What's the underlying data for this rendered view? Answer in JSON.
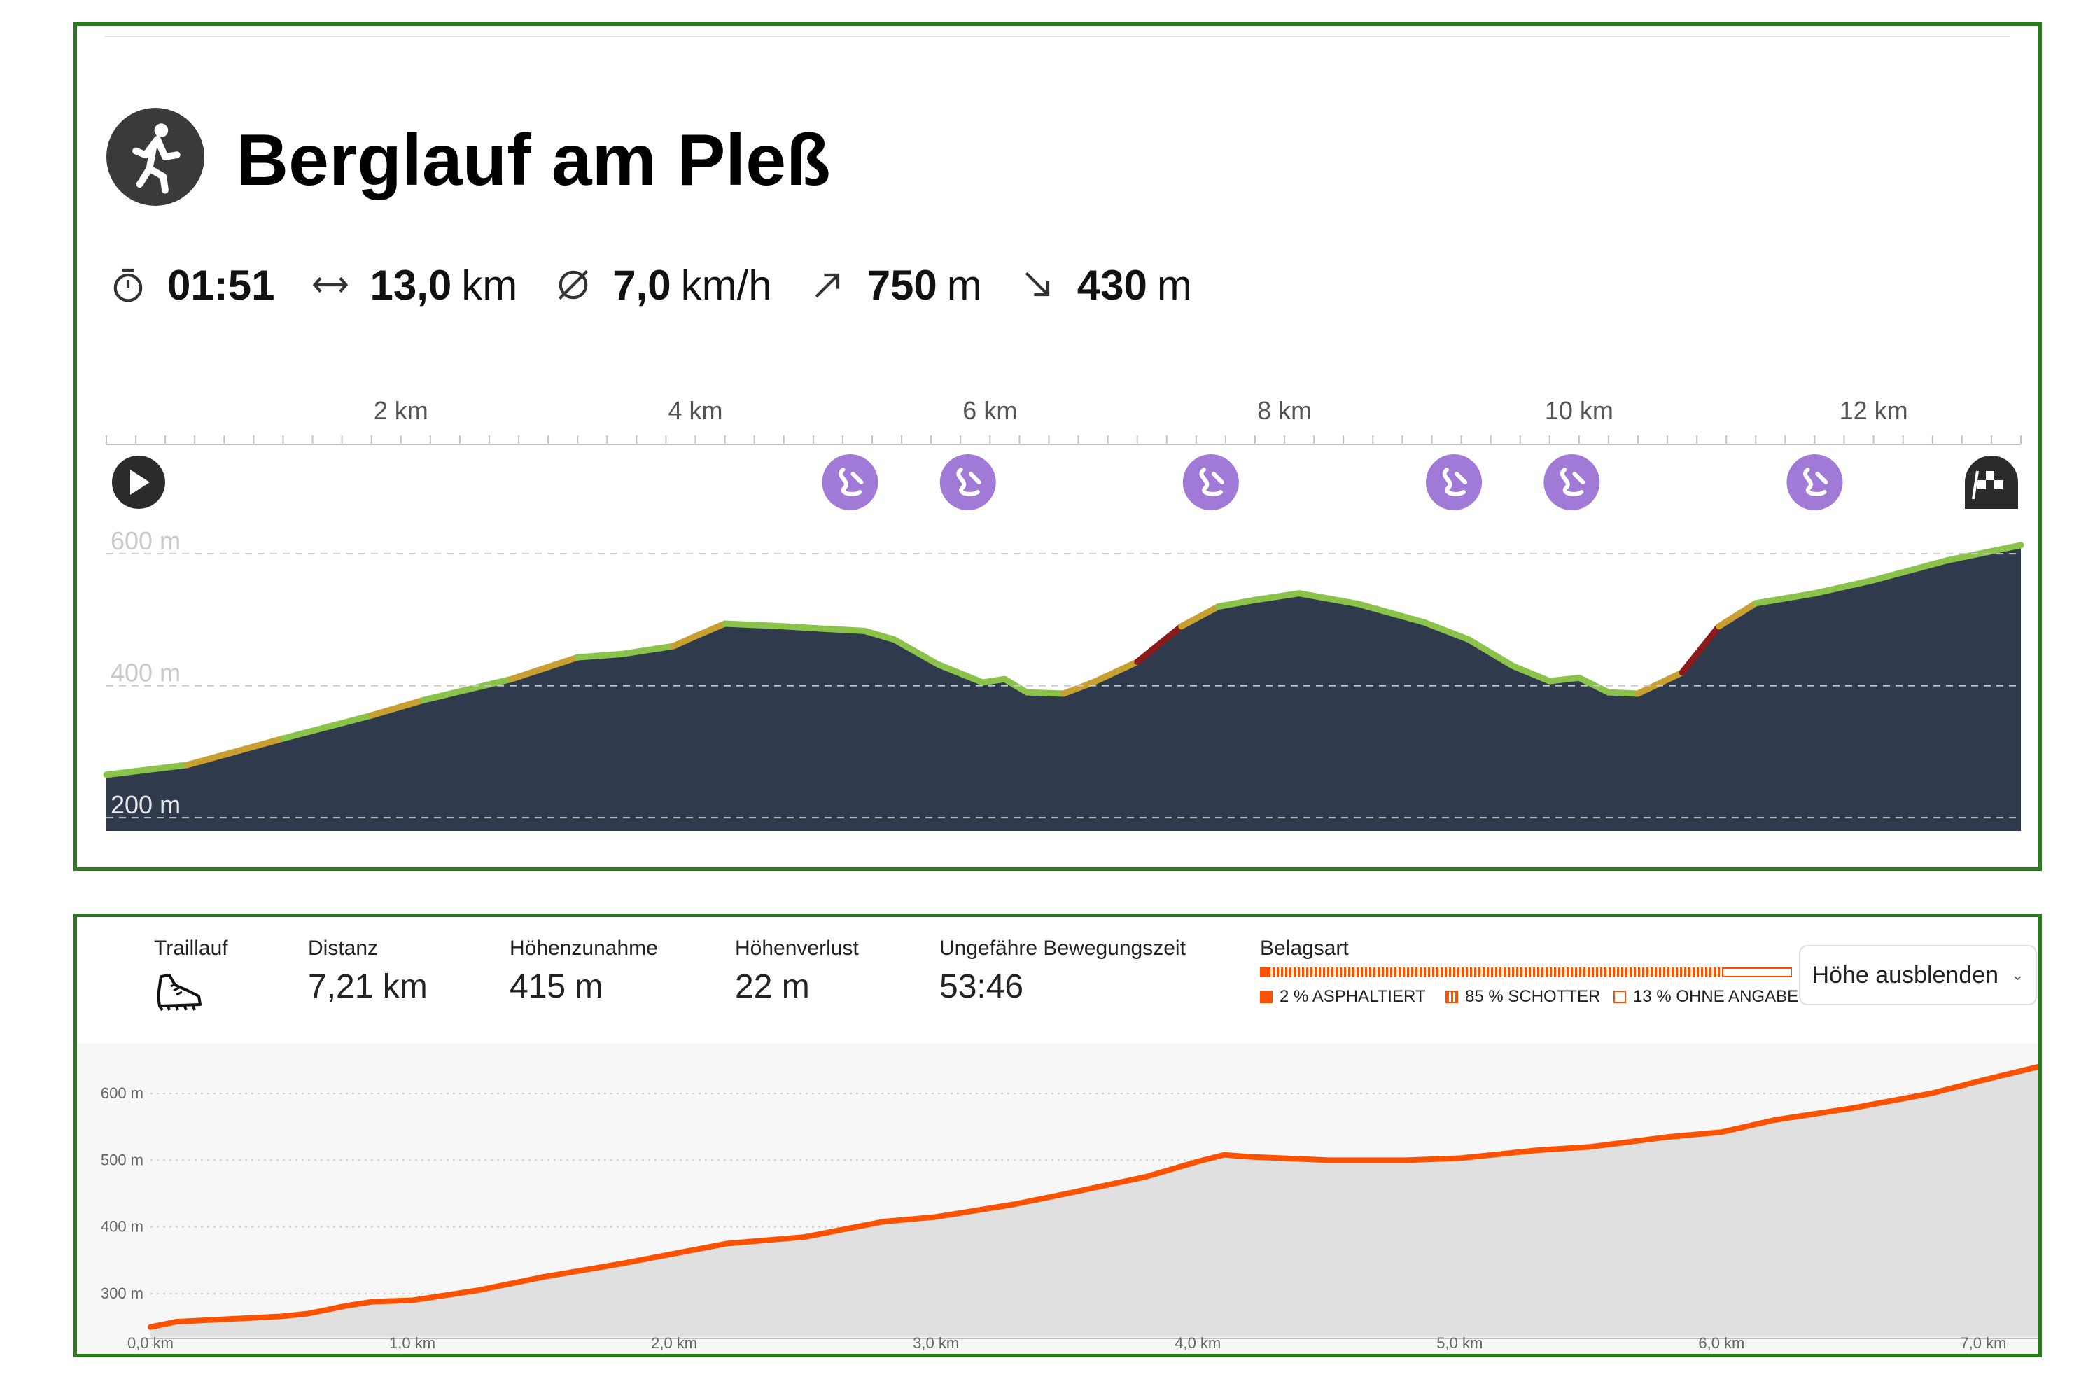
{
  "route": {
    "title": "Berglauf am Pleß",
    "sport_icon": "running-person-icon",
    "stats": [
      {
        "icon": "stopwatch-icon",
        "value": "01:51",
        "unit": ""
      },
      {
        "icon": "distance-arrows-icon",
        "value": "13,0",
        "unit": "km"
      },
      {
        "icon": "average-speed-icon",
        "value": "7,0",
        "unit": "km/h"
      },
      {
        "icon": "ascent-arrow-icon",
        "value": "750",
        "unit": "m"
      },
      {
        "icon": "descent-arrow-icon",
        "value": "430",
        "unit": "m"
      }
    ],
    "markers": {
      "start": "play-icon",
      "waypoint": "winding-road-icon",
      "finish": "checkered-flag-icon"
    },
    "colors": {
      "fill": "#2f3a4c",
      "gentle": "#8bc34a",
      "moderate": "#c8a032",
      "steep": "#8b1a1a"
    }
  },
  "profile": {
    "header": {
      "sport_label": "Traillauf",
      "sport_icon": "trail-shoe-icon",
      "distance_label": "Distanz",
      "distance_value": "7,21 km",
      "gain_label": "Höhenzunahme",
      "gain_value": "415 m",
      "loss_label": "Höhenverlust",
      "loss_value": "22 m",
      "time_label": "Ungefähre Bewegungszeit",
      "time_value": "53:46",
      "surface_label": "Belagsart",
      "surface_legend": [
        "2 % ASPHALTIERT",
        "85 % SCHOTTER",
        "13 % OHNE ANGABE"
      ],
      "surface_share": [
        0.02,
        0.85,
        0.13
      ],
      "hide_button": "Höhe ausblenden"
    },
    "colors": {
      "line": "#fc5200",
      "fill": "#e0e0e0"
    }
  },
  "chart_data": [
    {
      "type": "area",
      "x_unit": "km",
      "x_ticks": [
        2,
        4,
        6,
        8,
        10,
        12
      ],
      "x_tick_labels": [
        "2 km",
        "4 km",
        "6 km",
        "8 km",
        "10 km",
        "12 km"
      ],
      "xlim": [
        0,
        13.0
      ],
      "y_ticks": [
        200,
        400,
        600
      ],
      "y_tick_labels": [
        "200 m",
        "400 m",
        "600 m"
      ],
      "ylim": [
        180,
        615
      ],
      "waypoints_km": [
        5.05,
        5.85,
        7.5,
        9.15,
        9.95,
        11.6
      ],
      "x": [
        0,
        0.55,
        1.2,
        1.8,
        2.15,
        2.75,
        3.2,
        3.5,
        3.85,
        4.0,
        4.2,
        4.6,
        4.9,
        5.15,
        5.35,
        5.65,
        5.95,
        6.1,
        6.25,
        6.5,
        6.7,
        7.0,
        7.3,
        7.55,
        7.8,
        8.1,
        8.5,
        8.95,
        9.25,
        9.55,
        9.8,
        10.0,
        10.2,
        10.4,
        10.7,
        10.95,
        11.2,
        11.6,
        12.0,
        12.5,
        13.0
      ],
      "y": [
        265,
        280,
        320,
        355,
        378,
        410,
        443,
        448,
        460,
        475,
        494,
        490,
        486,
        483,
        470,
        432,
        405,
        410,
        390,
        388,
        405,
        436,
        490,
        520,
        530,
        540,
        524,
        496,
        470,
        430,
        407,
        412,
        390,
        388,
        420,
        490,
        525,
        540,
        560,
        590,
        613
      ]
    },
    {
      "type": "area",
      "x_unit": "km",
      "x_ticks": [
        0,
        1,
        2,
        3,
        4,
        5,
        6,
        7
      ],
      "x_tick_labels": [
        "0,0 km",
        "1,0 km",
        "2,0 km",
        "3,0 km",
        "4,0 km",
        "5,0 km",
        "6,0 km",
        "7,0 km"
      ],
      "xlim": [
        0,
        7.21
      ],
      "y_ticks": [
        300,
        400,
        500,
        600
      ],
      "y_tick_labels": [
        "300 m",
        "400 m",
        "500 m",
        "600 m"
      ],
      "ylim": [
        235,
        665
      ],
      "x": [
        0,
        0.1,
        0.3,
        0.5,
        0.6,
        0.75,
        0.85,
        1.0,
        1.1,
        1.25,
        1.5,
        1.8,
        2.0,
        2.2,
        2.5,
        2.8,
        3.0,
        3.3,
        3.5,
        3.8,
        4.0,
        4.1,
        4.2,
        4.5,
        4.8,
        5.0,
        5.3,
        5.5,
        5.8,
        6.0,
        6.2,
        6.5,
        6.8,
        7.0,
        7.21
      ],
      "y": [
        250,
        258,
        262,
        266,
        270,
        282,
        288,
        290,
        296,
        305,
        325,
        345,
        360,
        375,
        385,
        408,
        415,
        434,
        450,
        475,
        498,
        508,
        505,
        500,
        500,
        503,
        515,
        520,
        535,
        542,
        560,
        578,
        600,
        620,
        640
      ]
    }
  ]
}
